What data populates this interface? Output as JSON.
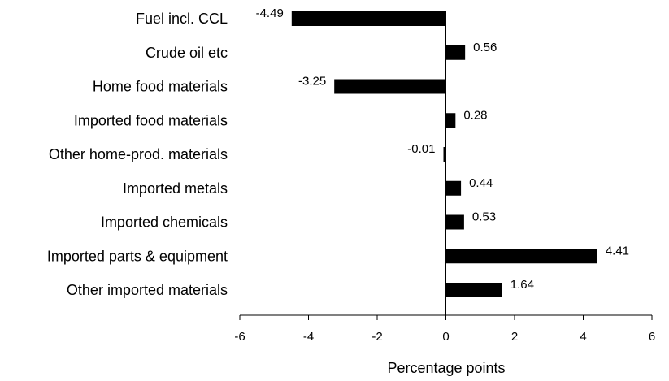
{
  "chart_data": {
    "type": "bar",
    "orientation": "horizontal",
    "categories": [
      "Fuel incl. CCL",
      "Crude oil etc",
      "Home food materials",
      "Imported food materials",
      "Other home-prod. materials",
      "Imported metals",
      "Imported chemicals",
      "Imported parts & equipment",
      "Other imported materials"
    ],
    "values": [
      -4.49,
      0.56,
      -3.25,
      0.28,
      -0.01,
      0.44,
      0.53,
      4.41,
      1.64
    ],
    "data_labels": [
      "-4.49",
      "0.56",
      "-3.25",
      "0.28",
      "-0.01",
      "0.44",
      "0.53",
      "4.41",
      "1.64"
    ],
    "xlabel": "Percentage points",
    "xlim": [
      -6,
      6
    ],
    "xticks": [
      -6,
      -4,
      -2,
      0,
      2,
      4,
      6
    ],
    "xtick_labels": [
      "-6",
      "-4",
      "-2",
      "0",
      "2",
      "4",
      "6"
    ],
    "grid": false,
    "bar_color": "#000000"
  }
}
